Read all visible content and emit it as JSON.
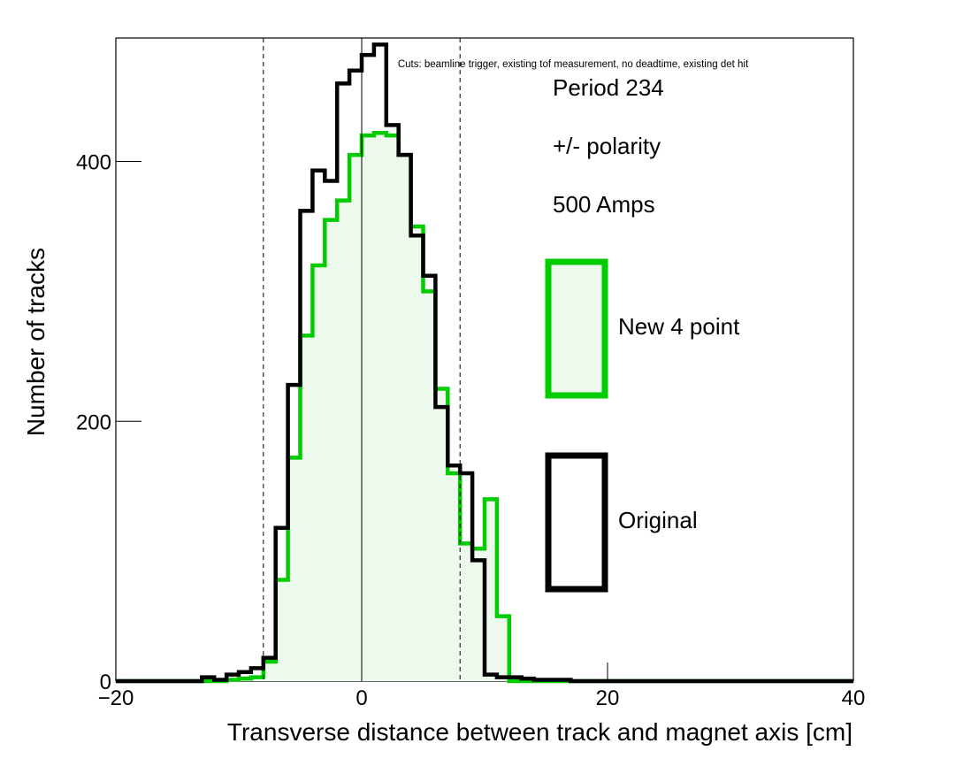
{
  "chart_data": {
    "type": "histogram",
    "xlabel": "Transverse distance between track and magnet axis [cm]",
    "ylabel": "Number of tracks",
    "xlim": [
      -20,
      40
    ],
    "ylim": [
      0,
      495
    ],
    "x_ticks": [
      -20,
      0,
      20,
      40
    ],
    "x_tick_labels": [
      "−20",
      "0",
      "20",
      "40"
    ],
    "y_ticks": [
      0,
      200,
      400
    ],
    "y_tick_labels": [
      "0",
      "200",
      "400"
    ],
    "grid": false,
    "cut_lines": [
      -8,
      0,
      8
    ],
    "annotation": "Cuts: beamline trigger, existing tof measurement, no deadtime, existing det hit",
    "text_lines": [
      "Period 234",
      "+/- polarity",
      "500 Amps"
    ],
    "legend_position": "right",
    "bin_edges": [
      -20,
      -19,
      -18,
      -17,
      -16,
      -15,
      -14,
      -13,
      -12,
      -11,
      -10,
      -9,
      -8,
      -7,
      -6,
      -5,
      -4,
      -3,
      -2,
      -1,
      0,
      1,
      2,
      3,
      4,
      5,
      6,
      7,
      8,
      9,
      10,
      11,
      12,
      13,
      14,
      15,
      16,
      17,
      18,
      19,
      20,
      21,
      22,
      23,
      24,
      25,
      26,
      27,
      28,
      29,
      30,
      31,
      32,
      33,
      34,
      35,
      36,
      37,
      38,
      39,
      40
    ],
    "series": [
      {
        "name": "New 4 point",
        "color": "#00cc00",
        "fill": "#eef9ee",
        "values": [
          0,
          0,
          0,
          0,
          0,
          0,
          0,
          0,
          0,
          1,
          2,
          3,
          15,
          78,
          172,
          266,
          320,
          355,
          370,
          405,
          420,
          422,
          420,
          405,
          350,
          300,
          225,
          160,
          106,
          102,
          140,
          50,
          0,
          0,
          0,
          0,
          0,
          0,
          0,
          0,
          0,
          0,
          0,
          0,
          0,
          0,
          0,
          0,
          0,
          0,
          0,
          0,
          0,
          0,
          0,
          0,
          0,
          0,
          0,
          0
        ]
      },
      {
        "name": "Original",
        "color": "#000000",
        "fill": "none",
        "values": [
          0,
          0,
          0,
          0,
          0,
          0,
          0,
          3,
          1,
          5,
          7,
          10,
          18,
          118,
          228,
          362,
          393,
          385,
          460,
          470,
          482,
          490,
          428,
          405,
          343,
          312,
          211,
          166,
          160,
          93,
          5,
          3,
          3,
          2,
          1,
          1,
          1,
          0,
          0,
          0,
          0,
          0,
          0,
          0,
          0,
          0,
          0,
          0,
          0,
          0,
          0,
          0,
          0,
          0,
          0,
          0,
          0,
          0,
          0,
          0
        ]
      }
    ]
  }
}
